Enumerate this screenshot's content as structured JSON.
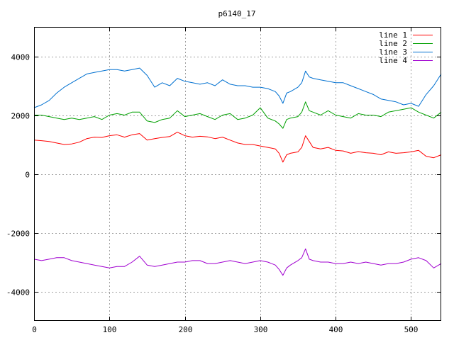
{
  "chart_data": {
    "type": "line",
    "title": "p6140_17",
    "xlabel": "",
    "ylabel": "",
    "xlim": [
      0,
      540
    ],
    "ylim": [
      -5000,
      5000
    ],
    "grid": true,
    "legend_position": "top-right",
    "x_ticks": [
      "0",
      "100",
      "200",
      "300",
      "400",
      "500"
    ],
    "y_ticks": [
      "-4000",
      "-2000",
      "0",
      "2000",
      "4000"
    ],
    "series": [
      {
        "name": "line 1",
        "color": "#ff0000",
        "x": [
          0,
          10,
          20,
          30,
          40,
          50,
          60,
          70,
          80,
          90,
          100,
          110,
          120,
          130,
          140,
          150,
          160,
          170,
          180,
          190,
          200,
          210,
          220,
          230,
          240,
          250,
          260,
          270,
          280,
          290,
          300,
          310,
          320,
          325,
          330,
          335,
          340,
          350,
          355,
          360,
          365,
          370,
          380,
          390,
          400,
          410,
          420,
          430,
          440,
          450,
          460,
          470,
          480,
          490,
          500,
          510,
          520,
          530,
          540
        ],
        "y": [
          1150,
          1130,
          1100,
          1050,
          1000,
          1020,
          1080,
          1200,
          1250,
          1240,
          1300,
          1330,
          1250,
          1330,
          1370,
          1150,
          1200,
          1240,
          1270,
          1420,
          1300,
          1250,
          1280,
          1260,
          1200,
          1250,
          1150,
          1050,
          1000,
          1000,
          950,
          900,
          850,
          700,
          400,
          650,
          700,
          750,
          900,
          1300,
          1100,
          900,
          850,
          900,
          800,
          780,
          700,
          760,
          720,
          700,
          650,
          750,
          700,
          720,
          750,
          800,
          600,
          550,
          650
        ]
      },
      {
        "name": "line 2",
        "color": "#00a000",
        "x": [
          0,
          10,
          20,
          30,
          40,
          50,
          60,
          70,
          80,
          90,
          100,
          110,
          120,
          130,
          140,
          150,
          160,
          170,
          180,
          190,
          200,
          210,
          220,
          230,
          240,
          250,
          260,
          270,
          280,
          290,
          300,
          310,
          320,
          325,
          330,
          335,
          340,
          350,
          355,
          360,
          365,
          370,
          380,
          390,
          400,
          410,
          420,
          430,
          440,
          450,
          460,
          470,
          480,
          490,
          500,
          510,
          520,
          530,
          540
        ],
        "y": [
          2000,
          2000,
          1950,
          1900,
          1850,
          1900,
          1850,
          1900,
          1950,
          1850,
          2000,
          2050,
          2000,
          2100,
          2100,
          1800,
          1750,
          1850,
          1900,
          2150,
          1950,
          2000,
          2050,
          1950,
          1850,
          2000,
          2050,
          1850,
          1900,
          2000,
          2250,
          1900,
          1800,
          1700,
          1550,
          1850,
          1900,
          1950,
          2100,
          2450,
          2150,
          2100,
          2000,
          2150,
          2000,
          1950,
          1900,
          2050,
          2000,
          2000,
          1950,
          2100,
          2150,
          2200,
          2250,
          2100,
          2000,
          1900,
          2100
        ]
      },
      {
        "name": "line 3",
        "color": "#0070d0",
        "x": [
          0,
          10,
          20,
          30,
          40,
          50,
          60,
          70,
          80,
          90,
          100,
          110,
          120,
          130,
          140,
          150,
          160,
          170,
          180,
          190,
          200,
          210,
          220,
          230,
          240,
          250,
          260,
          270,
          280,
          290,
          300,
          310,
          320,
          325,
          330,
          335,
          340,
          350,
          355,
          360,
          365,
          370,
          380,
          390,
          400,
          410,
          420,
          430,
          440,
          450,
          460,
          470,
          480,
          490,
          500,
          510,
          520,
          530,
          540
        ],
        "y": [
          2250,
          2350,
          2500,
          2750,
          2950,
          3100,
          3250,
          3400,
          3450,
          3500,
          3550,
          3550,
          3500,
          3550,
          3600,
          3350,
          2950,
          3100,
          3000,
          3250,
          3150,
          3100,
          3050,
          3100,
          3000,
          3200,
          3050,
          3000,
          3000,
          2950,
          2950,
          2900,
          2800,
          2650,
          2400,
          2750,
          2800,
          2950,
          3100,
          3500,
          3300,
          3250,
          3200,
          3150,
          3100,
          3100,
          3000,
          2900,
          2800,
          2700,
          2550,
          2500,
          2450,
          2350,
          2400,
          2300,
          2700,
          3000,
          3400
        ]
      },
      {
        "name": "line 4",
        "color": "#a000d0",
        "x": [
          0,
          10,
          20,
          30,
          40,
          50,
          60,
          70,
          80,
          90,
          100,
          110,
          120,
          130,
          140,
          150,
          160,
          170,
          180,
          190,
          200,
          210,
          220,
          230,
          240,
          250,
          260,
          270,
          280,
          290,
          300,
          310,
          320,
          325,
          330,
          335,
          340,
          350,
          355,
          360,
          365,
          370,
          380,
          390,
          400,
          410,
          420,
          430,
          440,
          450,
          460,
          470,
          480,
          490,
          500,
          510,
          520,
          530,
          540
        ],
        "y": [
          -2900,
          -2950,
          -2900,
          -2850,
          -2850,
          -2950,
          -3000,
          -3050,
          -3100,
          -3150,
          -3200,
          -3150,
          -3150,
          -3000,
          -2800,
          -3100,
          -3150,
          -3100,
          -3050,
          -3000,
          -3000,
          -2950,
          -2950,
          -3050,
          -3050,
          -3000,
          -2950,
          -3000,
          -3050,
          -3000,
          -2950,
          -3000,
          -3100,
          -3250,
          -3450,
          -3200,
          -3100,
          -2950,
          -2850,
          -2550,
          -2900,
          -2950,
          -3000,
          -3000,
          -3050,
          -3050,
          -3000,
          -3050,
          -3000,
          -3050,
          -3100,
          -3050,
          -3050,
          -3000,
          -2900,
          -2850,
          -2950,
          -3200,
          -3050
        ]
      }
    ]
  }
}
